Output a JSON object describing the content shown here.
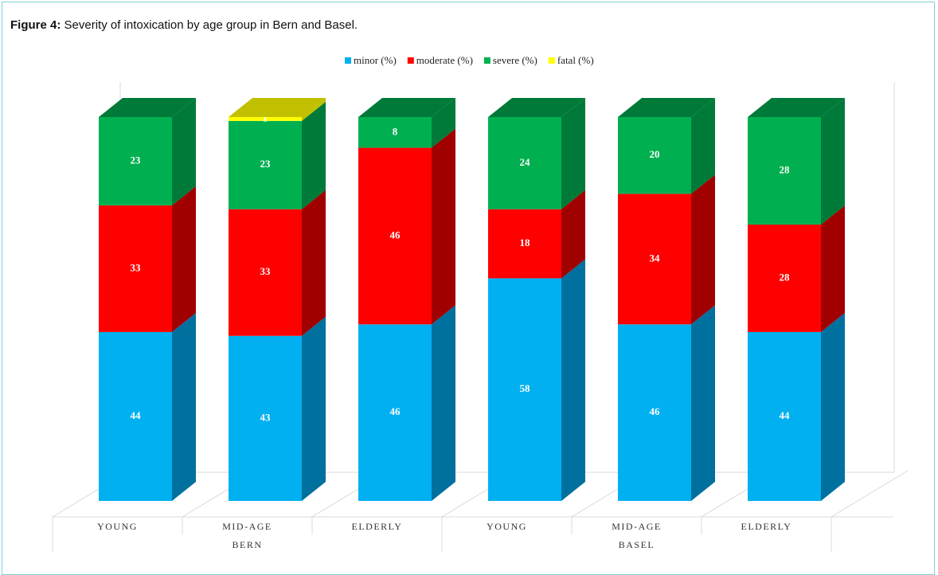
{
  "chart_data": {
    "type": "bar3d_stacked",
    "title_label": "Figure 4:",
    "title": "Severity of intoxication by age group in Bern and Basel.",
    "groups": [
      {
        "label": "BERN",
        "categories": [
          "YOUNG",
          "MID-AGE",
          "ELDERLY"
        ]
      },
      {
        "label": "BASEL",
        "categories": [
          "YOUNG",
          "MID-AGE",
          "ELDERLY"
        ]
      }
    ],
    "series": [
      {
        "name": "minor (%)",
        "color": "#00b0f0",
        "side_color": "#00709e",
        "values": [
          44,
          43,
          46,
          58,
          46,
          44
        ]
      },
      {
        "name": "moderate (%)",
        "color": "#ff0000",
        "side_color": "#a00000",
        "values": [
          33,
          33,
          46,
          18,
          34,
          28
        ]
      },
      {
        "name": "severe (%)",
        "color": "#00b050",
        "side_color": "#007a38",
        "values": [
          23,
          23,
          8,
          24,
          20,
          28
        ]
      },
      {
        "name": "fatal (%)",
        "color": "#ffff00",
        "side_color": "#c0c000",
        "values": [
          null,
          1,
          null,
          null,
          null,
          null
        ]
      }
    ],
    "ylim": [
      0,
      100
    ],
    "legend": "top"
  }
}
